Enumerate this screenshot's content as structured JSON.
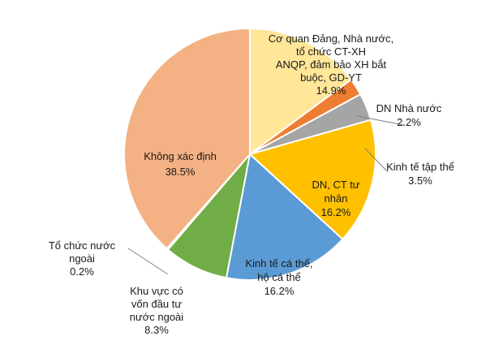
{
  "chart_data": {
    "type": "pie",
    "title": "",
    "slices": [
      {
        "label": [
          "Cơ quan Đảng, Nhà nước,",
          "tổ chức CT-XH",
          "ANQP, đảm bảo XH bắt",
          "buộc, GD-YT"
        ],
        "value": 14.9,
        "value_label": "14.9%",
        "color": "#FFE699"
      },
      {
        "label": [
          "DN Nhà nước"
        ],
        "value": 2.2,
        "value_label": "2.2%",
        "color": "#ED7D31"
      },
      {
        "label": [
          "Kinh tế tập thể"
        ],
        "value": 3.5,
        "value_label": "3.5%",
        "color": "#A5A5A5"
      },
      {
        "label": [
          "DN, CT tư",
          "nhân"
        ],
        "value": 16.2,
        "value_label": "16.2%",
        "color": "#FFC000"
      },
      {
        "label": [
          "Kinh tế cá thể,",
          "hộ cá thể"
        ],
        "value": 16.2,
        "value_label": "16.2%",
        "color": "#5B9BD5"
      },
      {
        "label": [
          "Khu vực có",
          "vốn đầu tư",
          "nước ngoài"
        ],
        "value": 8.3,
        "value_label": "8.3%",
        "color": "#70AD47"
      },
      {
        "label": [
          "Tổ chức nước",
          "ngoài"
        ],
        "value": 0.2,
        "value_label": "0.2%",
        "color": "#264478"
      },
      {
        "label": [
          "Không xác định"
        ],
        "value": 38.5,
        "value_label": "38.5%",
        "color": "#F4B183"
      }
    ]
  }
}
